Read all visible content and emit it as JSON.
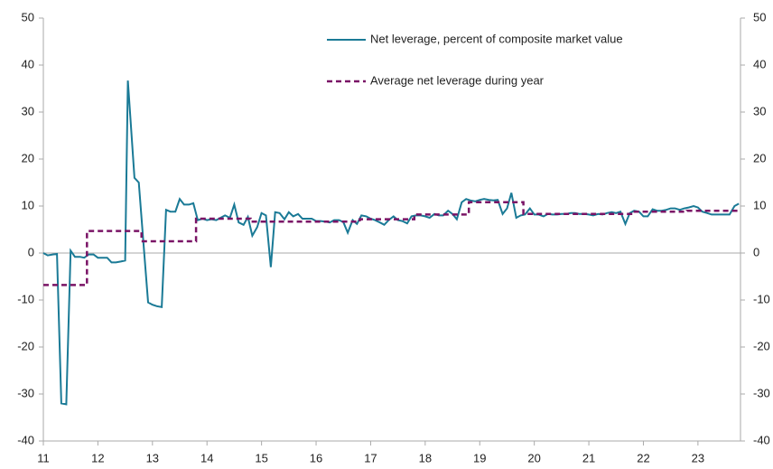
{
  "chart_data": {
    "type": "line",
    "xlim": [
      11,
      23.78
    ],
    "xticks": [
      11,
      12,
      13,
      14,
      15,
      16,
      17,
      18,
      19,
      20,
      21,
      22,
      23
    ],
    "ylim": [
      -40,
      50
    ],
    "yticks": [
      -40,
      -30,
      -20,
      -10,
      0,
      10,
      20,
      30,
      40,
      50
    ],
    "y2lim": [
      -40,
      50
    ],
    "y2ticks": [
      -40,
      -30,
      -20,
      -10,
      0,
      10,
      20,
      30,
      40,
      50
    ],
    "series": [
      {
        "name": "Net leverage, percent of composite market value",
        "color": "#1a7a96",
        "dash": false,
        "x": [
          11.0,
          11.08,
          11.17,
          11.25,
          11.33,
          11.42,
          11.5,
          11.58,
          11.67,
          11.75,
          11.83,
          11.92,
          12.0,
          12.08,
          12.17,
          12.25,
          12.33,
          12.42,
          12.5,
          12.55,
          12.67,
          12.75,
          12.83,
          12.92,
          13.0,
          13.08,
          13.17,
          13.25,
          13.33,
          13.42,
          13.5,
          13.58,
          13.67,
          13.75,
          13.83,
          13.92,
          14.0,
          14.08,
          14.17,
          14.25,
          14.33,
          14.42,
          14.5,
          14.58,
          14.67,
          14.75,
          14.83,
          14.92,
          15.0,
          15.08,
          15.17,
          15.25,
          15.33,
          15.42,
          15.5,
          15.58,
          15.67,
          15.75,
          15.83,
          15.92,
          16.0,
          16.08,
          16.17,
          16.25,
          16.33,
          16.42,
          16.5,
          16.58,
          16.67,
          16.75,
          16.83,
          16.92,
          17.0,
          17.08,
          17.17,
          17.25,
          17.33,
          17.42,
          17.5,
          17.58,
          17.67,
          17.75,
          17.83,
          17.92,
          18.0,
          18.08,
          18.17,
          18.25,
          18.33,
          18.42,
          18.5,
          18.58,
          18.67,
          18.75,
          18.83,
          18.92,
          19.0,
          19.08,
          19.17,
          19.25,
          19.33,
          19.42,
          19.5,
          19.58,
          19.67,
          19.75,
          19.83,
          19.92,
          20.0,
          20.08,
          20.17,
          20.25,
          20.33,
          20.42,
          20.5,
          20.58,
          20.67,
          20.75,
          20.83,
          20.92,
          21.0,
          21.08,
          21.17,
          21.25,
          21.33,
          21.42,
          21.5,
          21.58,
          21.67,
          21.75,
          21.83,
          21.92,
          22.0,
          22.08,
          22.17,
          22.25,
          22.33,
          22.42,
          22.5,
          22.58,
          22.67,
          22.75,
          22.83,
          22.92,
          23.0,
          23.08,
          23.17,
          23.25,
          23.33,
          23.42,
          23.5,
          23.58,
          23.67,
          23.75
        ],
        "values": [
          0,
          -0.5,
          -0.3,
          -0.2,
          -32,
          -32.2,
          0.5,
          -0.8,
          -0.8,
          -1,
          -0.3,
          -0.3,
          -1,
          -1,
          -1,
          -2,
          -2,
          -1.8,
          -1.6,
          36.7,
          16,
          15,
          3,
          -10.5,
          -11,
          -11.3,
          -11.5,
          9.2,
          8.8,
          8.8,
          11.5,
          10.3,
          10.3,
          10.6,
          7,
          7.3,
          7,
          7.2,
          7,
          7.5,
          8,
          7.5,
          10.3,
          6.5,
          6,
          7.7,
          3.7,
          5.5,
          8.5,
          8,
          -3,
          8.7,
          8.5,
          7.2,
          8.7,
          7.8,
          8.3,
          7.3,
          7.3,
          7.3,
          6.8,
          6.8,
          6.7,
          6.5,
          7,
          7,
          6.6,
          4.3,
          7,
          6.2,
          8,
          7.8,
          7.3,
          7,
          6.5,
          6,
          7,
          7.8,
          7,
          6.8,
          6.3,
          7.8,
          8,
          8,
          7.8,
          7.5,
          8.3,
          8,
          8,
          9,
          8.3,
          7.2,
          10.8,
          11.5,
          11.2,
          11,
          11.3,
          11.5,
          11.3,
          11.2,
          11.3,
          8.3,
          9.5,
          12.8,
          7.5,
          8,
          8.2,
          9.5,
          8.2,
          8.2,
          7.8,
          8.3,
          8.2,
          8.2,
          8.3,
          8.3,
          8.5,
          8.5,
          8.3,
          8.3,
          8.2,
          8,
          8.3,
          8.2,
          8.5,
          8.7,
          8.5,
          8.8,
          6.2,
          8.5,
          9,
          8.8,
          7.8,
          7.8,
          9.3,
          9,
          9,
          9.2,
          9.5,
          9.5,
          9.2,
          9.5,
          9.7,
          10,
          9.7,
          8.8,
          8.5,
          8.2,
          8.2,
          8.2,
          8.2,
          8.2,
          10,
          10.5
        ]
      },
      {
        "name": "Average net leverage during year",
        "color": "#7a1466",
        "dash": true,
        "x": [
          11.0,
          11.8,
          11.8,
          12.8,
          12.8,
          13.8,
          13.8,
          14.8,
          14.8,
          16.8,
          16.8,
          17.8,
          17.8,
          18.8,
          18.8,
          19.8,
          19.8,
          21.8,
          21.8,
          22.8,
          22.8,
          23.78
        ],
        "values": [
          -6.8,
          -6.8,
          4.7,
          4.7,
          2.5,
          2.5,
          7.3,
          7.3,
          6.7,
          6.7,
          7.2,
          7.2,
          8.2,
          8.2,
          10.8,
          10.8,
          8.3,
          8.3,
          8.8,
          8.8,
          9.0,
          9.0
        ]
      }
    ]
  }
}
